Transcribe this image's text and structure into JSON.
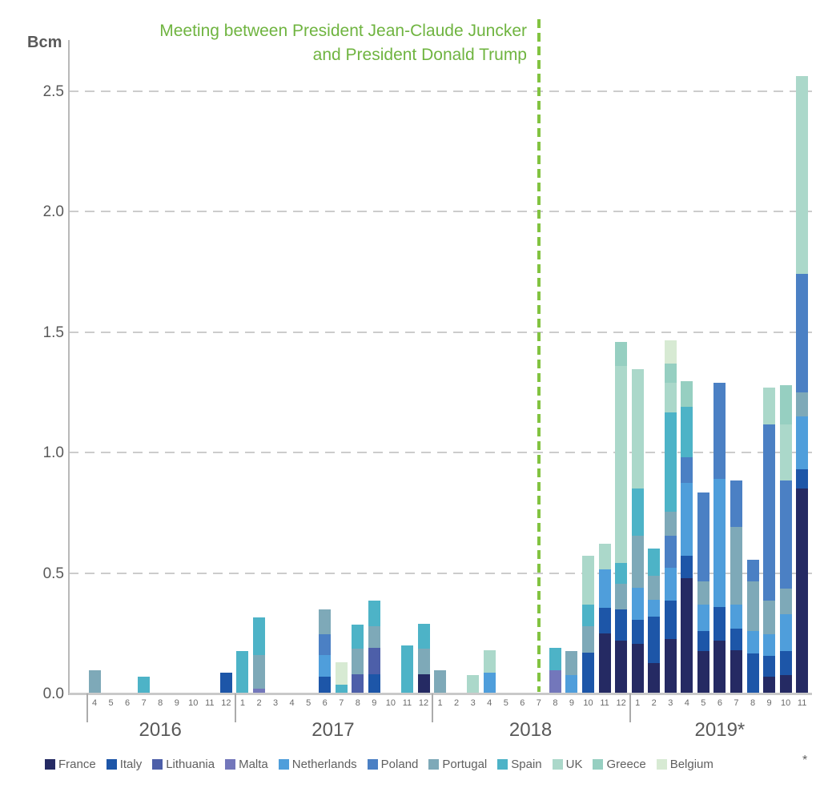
{
  "title": {
    "line1": "Meeting between President Jean-Claude Juncker",
    "line2": "and President Donald Trump",
    "color": "#6fb440"
  },
  "footnote_asterisk": "*",
  "chart_data": {
    "type": "bar",
    "stacked": true,
    "unit_label": "Bcm",
    "y_ticks": [
      0.0,
      0.5,
      1.0,
      1.5,
      2.0,
      2.5
    ],
    "ylim": [
      0,
      2.7
    ],
    "grid": "dashed-horizontal",
    "legend_position": "bottom",
    "event_line": {
      "at_year": 2018,
      "at_month": 7,
      "color": "#82c341",
      "style": "dashed-vertical"
    },
    "colors": {
      "France": "#252a63",
      "Italy": "#1d56a8",
      "Lithuania": "#4d5fa9",
      "Malta": "#7377bb",
      "Netherlands": "#4f9edb",
      "Poland": "#4b80c4",
      "Portugal": "#7ea9b8",
      "Spain": "#4db3c7",
      "UK": "#abd8ca",
      "Greece": "#96cfc1",
      "Belgium": "#d7ead3"
    },
    "legend": [
      "France",
      "Italy",
      "Lithuania",
      "Malta",
      "Netherlands",
      "Poland",
      "Portugal",
      "Spain",
      "UK",
      "Greece",
      "Belgium"
    ],
    "years": [
      {
        "label": "2016",
        "months": [
          4,
          5,
          6,
          7,
          8,
          9,
          10,
          11,
          12
        ]
      },
      {
        "label": "2017",
        "months": [
          1,
          2,
          3,
          4,
          5,
          6,
          7,
          8,
          9,
          10,
          11,
          12
        ]
      },
      {
        "label": "2018",
        "months": [
          1,
          2,
          3,
          4,
          5,
          6,
          7,
          8,
          9,
          10,
          11,
          12
        ]
      },
      {
        "label": "2019*",
        "months": [
          1,
          2,
          3,
          4,
          5,
          6,
          7,
          8,
          9,
          10,
          11
        ]
      }
    ],
    "bars": [
      {
        "y": 2016,
        "m": 4,
        "s": [
          [
            "Portugal",
            0.095
          ]
        ]
      },
      {
        "y": 2016,
        "m": 5,
        "s": []
      },
      {
        "y": 2016,
        "m": 6,
        "s": []
      },
      {
        "y": 2016,
        "m": 7,
        "s": [
          [
            "Spain",
            0.07
          ]
        ]
      },
      {
        "y": 2016,
        "m": 8,
        "s": []
      },
      {
        "y": 2016,
        "m": 9,
        "s": []
      },
      {
        "y": 2016,
        "m": 10,
        "s": []
      },
      {
        "y": 2016,
        "m": 11,
        "s": []
      },
      {
        "y": 2016,
        "m": 12,
        "s": [
          [
            "Italy",
            0.085
          ]
        ]
      },
      {
        "y": 2017,
        "m": 1,
        "s": [
          [
            "Spain",
            0.175
          ]
        ]
      },
      {
        "y": 2017,
        "m": 2,
        "s": [
          [
            "Malta",
            0.02
          ],
          [
            "Portugal",
            0.14
          ],
          [
            "Spain",
            0.155
          ]
        ]
      },
      {
        "y": 2017,
        "m": 3,
        "s": []
      },
      {
        "y": 2017,
        "m": 4,
        "s": []
      },
      {
        "y": 2017,
        "m": 5,
        "s": []
      },
      {
        "y": 2017,
        "m": 6,
        "s": [
          [
            "Italy",
            0.07
          ],
          [
            "Netherlands",
            0.09
          ],
          [
            "Poland",
            0.085
          ],
          [
            "Portugal",
            0.105
          ]
        ]
      },
      {
        "y": 2017,
        "m": 7,
        "s": [
          [
            "Spain",
            0.035
          ],
          [
            "Belgium",
            0.095
          ]
        ]
      },
      {
        "y": 2017,
        "m": 8,
        "s": [
          [
            "Lithuania",
            0.08
          ],
          [
            "Portugal",
            0.105
          ],
          [
            "Spain",
            0.1
          ]
        ]
      },
      {
        "y": 2017,
        "m": 9,
        "s": [
          [
            "Italy",
            0.08
          ],
          [
            "Lithuania",
            0.11
          ],
          [
            "Portugal",
            0.09
          ],
          [
            "Spain",
            0.105
          ]
        ]
      },
      {
        "y": 2017,
        "m": 10,
        "s": []
      },
      {
        "y": 2017,
        "m": 11,
        "s": [
          [
            "Spain",
            0.2
          ]
        ]
      },
      {
        "y": 2017,
        "m": 12,
        "s": [
          [
            "France",
            0.08
          ],
          [
            "Portugal",
            0.105
          ],
          [
            "Spain",
            0.105
          ]
        ]
      },
      {
        "y": 2018,
        "m": 1,
        "s": [
          [
            "Portugal",
            0.095
          ]
        ]
      },
      {
        "y": 2018,
        "m": 2,
        "s": []
      },
      {
        "y": 2018,
        "m": 3,
        "s": [
          [
            "UK",
            0.075
          ]
        ]
      },
      {
        "y": 2018,
        "m": 4,
        "s": [
          [
            "Netherlands",
            0.085
          ],
          [
            "UK",
            0.095
          ]
        ]
      },
      {
        "y": 2018,
        "m": 5,
        "s": []
      },
      {
        "y": 2018,
        "m": 6,
        "s": []
      },
      {
        "y": 2018,
        "m": 7,
        "s": []
      },
      {
        "y": 2018,
        "m": 8,
        "s": [
          [
            "Malta",
            0.095
          ],
          [
            "Spain",
            0.095
          ]
        ]
      },
      {
        "y": 2018,
        "m": 9,
        "s": [
          [
            "Netherlands",
            0.075
          ],
          [
            "Portugal",
            0.1
          ]
        ]
      },
      {
        "y": 2018,
        "m": 10,
        "s": [
          [
            "Italy",
            0.17
          ],
          [
            "Portugal",
            0.11
          ],
          [
            "Spain",
            0.09
          ],
          [
            "UK",
            0.2
          ]
        ]
      },
      {
        "y": 2018,
        "m": 11,
        "s": [
          [
            "France",
            0.25
          ],
          [
            "Italy",
            0.105
          ],
          [
            "Netherlands",
            0.16
          ],
          [
            "UK",
            0.105
          ]
        ]
      },
      {
        "y": 2018,
        "m": 12,
        "s": [
          [
            "France",
            0.22
          ],
          [
            "Italy",
            0.13
          ],
          [
            "Portugal",
            0.105
          ],
          [
            "Spain",
            0.085
          ],
          [
            "UK",
            0.82
          ],
          [
            "Greece",
            0.1
          ]
        ]
      },
      {
        "y": 2019,
        "m": 1,
        "s": [
          [
            "France",
            0.205
          ],
          [
            "Italy",
            0.1
          ],
          [
            "Netherlands",
            0.135
          ],
          [
            "Portugal",
            0.215
          ],
          [
            "Spain",
            0.195
          ],
          [
            "UK",
            0.495
          ]
        ]
      },
      {
        "y": 2019,
        "m": 2,
        "s": [
          [
            "France",
            0.125
          ],
          [
            "Italy",
            0.195
          ],
          [
            "Netherlands",
            0.07
          ],
          [
            "Portugal",
            0.1
          ],
          [
            "Spain",
            0.11
          ]
        ]
      },
      {
        "y": 2019,
        "m": 3,
        "s": [
          [
            "France",
            0.225
          ],
          [
            "Italy",
            0.16
          ],
          [
            "Netherlands",
            0.135
          ],
          [
            "Poland",
            0.135
          ],
          [
            "Portugal",
            0.1
          ],
          [
            "Spain",
            0.41
          ],
          [
            "UK",
            0.125
          ],
          [
            "Greece",
            0.08
          ],
          [
            "Belgium",
            0.095
          ]
        ]
      },
      {
        "y": 2019,
        "m": 4,
        "s": [
          [
            "France",
            0.48
          ],
          [
            "Italy",
            0.09
          ],
          [
            "Netherlands",
            0.305
          ],
          [
            "Poland",
            0.105
          ],
          [
            "Spain",
            0.21
          ],
          [
            "Greece",
            0.105
          ]
        ]
      },
      {
        "y": 2019,
        "m": 5,
        "s": [
          [
            "France",
            0.175
          ],
          [
            "Italy",
            0.085
          ],
          [
            "Netherlands",
            0.11
          ],
          [
            "Portugal",
            0.095
          ],
          [
            "Poland",
            0.37
          ]
        ]
      },
      {
        "y": 2019,
        "m": 6,
        "s": [
          [
            "France",
            0.22
          ],
          [
            "Italy",
            0.14
          ],
          [
            "Netherlands",
            0.53
          ],
          [
            "Poland",
            0.4
          ]
        ]
      },
      {
        "y": 2019,
        "m": 7,
        "s": [
          [
            "France",
            0.18
          ],
          [
            "Italy",
            0.09
          ],
          [
            "Netherlands",
            0.1
          ],
          [
            "Portugal",
            0.32
          ],
          [
            "Poland",
            0.195
          ]
        ]
      },
      {
        "y": 2019,
        "m": 8,
        "s": [
          [
            "Italy",
            0.165
          ],
          [
            "Netherlands",
            0.095
          ],
          [
            "Portugal",
            0.205
          ],
          [
            "Poland",
            0.09
          ]
        ]
      },
      {
        "y": 2019,
        "m": 9,
        "s": [
          [
            "France",
            0.07
          ],
          [
            "Italy",
            0.085
          ],
          [
            "Netherlands",
            0.09
          ],
          [
            "Portugal",
            0.14
          ],
          [
            "Poland",
            0.73
          ],
          [
            "UK",
            0.155
          ]
        ]
      },
      {
        "y": 2019,
        "m": 10,
        "s": [
          [
            "France",
            0.075
          ],
          [
            "Italy",
            0.1
          ],
          [
            "Netherlands",
            0.155
          ],
          [
            "Portugal",
            0.105
          ],
          [
            "Poland",
            0.45
          ],
          [
            "UK",
            0.23
          ],
          [
            "Greece",
            0.165
          ]
        ]
      },
      {
        "y": 2019,
        "m": 11,
        "s": [
          [
            "France",
            0.85
          ],
          [
            "Italy",
            0.08
          ],
          [
            "Netherlands",
            0.22
          ],
          [
            "Portugal",
            0.1
          ],
          [
            "Poland",
            0.49
          ],
          [
            "UK",
            0.82
          ]
        ]
      }
    ]
  }
}
